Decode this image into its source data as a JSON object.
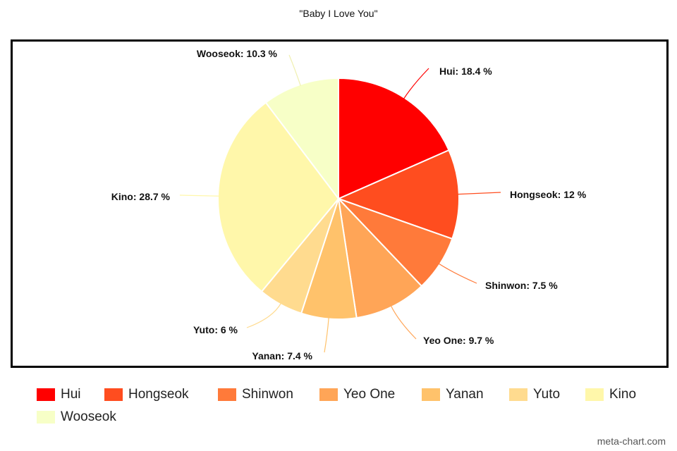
{
  "chart_data": {
    "type": "pie",
    "title": "\"Baby I Love You\"",
    "slices": [
      {
        "label": "Hui",
        "value": 18.4,
        "display": "Hui: 18.4 %",
        "color": "#ff0000"
      },
      {
        "label": "Hongseok",
        "value": 12,
        "display": "Hongseok: 12 %",
        "color": "#ff4d1f"
      },
      {
        "label": "Shinwon",
        "value": 7.5,
        "display": "Shinwon: 7.5 %",
        "color": "#ff7a3a"
      },
      {
        "label": "Yeo One",
        "value": 9.7,
        "display": "Yeo One: 9.7 %",
        "color": "#ffa557"
      },
      {
        "label": "Yanan",
        "value": 7.4,
        "display": "Yanan: 7.4 %",
        "color": "#ffc26b"
      },
      {
        "label": "Yuto",
        "value": 6,
        "display": "Yuto: 6 %",
        "color": "#ffdb8f"
      },
      {
        "label": "Kino",
        "value": 28.7,
        "display": "Kino: 28.7 %",
        "color": "#fff7aa"
      },
      {
        "label": "Wooseok",
        "value": 10.3,
        "display": "Wooseok: 10.3 %",
        "color": "#f7ffc7"
      }
    ],
    "legend_placement": "bottom"
  },
  "watermark": "meta-chart.com"
}
